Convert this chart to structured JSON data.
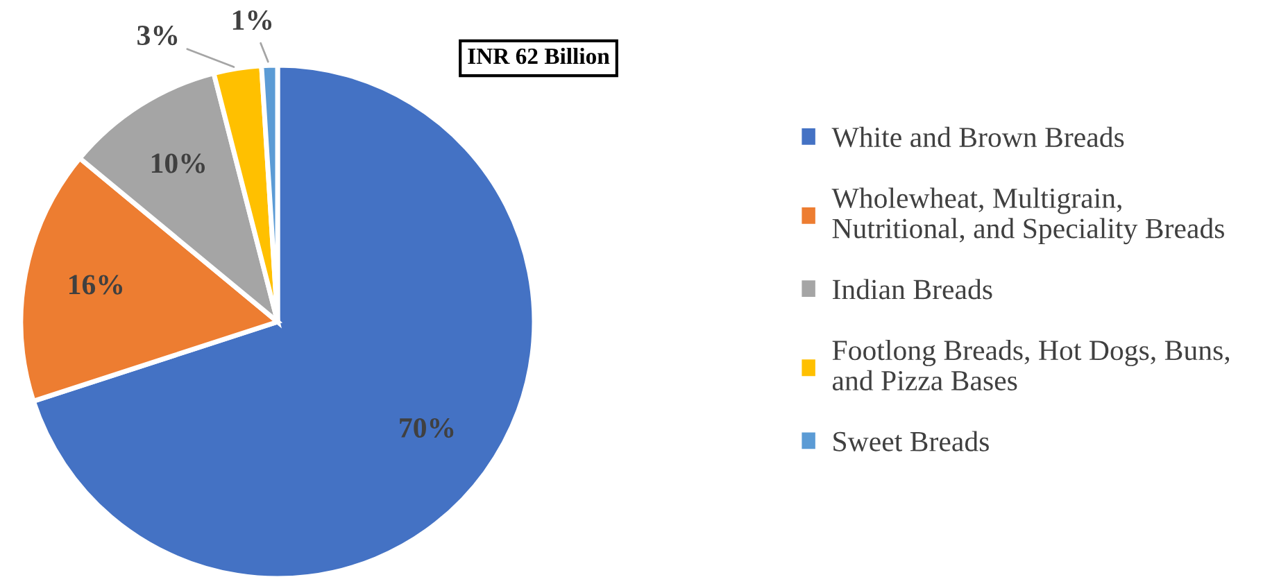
{
  "chart_data": {
    "type": "pie",
    "title": "INR 62 Billion",
    "categories": [
      "White and Brown Breads",
      "Wholewheat, Multigrain,\nNutritional, and Speciality Breads",
      "Indian Breads",
      "Footlong Breads, Hot Dogs, Buns,\nand Pizza Bases",
      "Sweet Breads"
    ],
    "values": [
      70,
      16,
      10,
      3,
      1
    ],
    "value_labels": [
      "70%",
      "16%",
      "10%",
      "3%",
      "1%"
    ],
    "colors": [
      "#4472c4",
      "#ed7d31",
      "#a5a5a5",
      "#ffc000",
      "#5b9bd5"
    ],
    "legend": "right"
  }
}
